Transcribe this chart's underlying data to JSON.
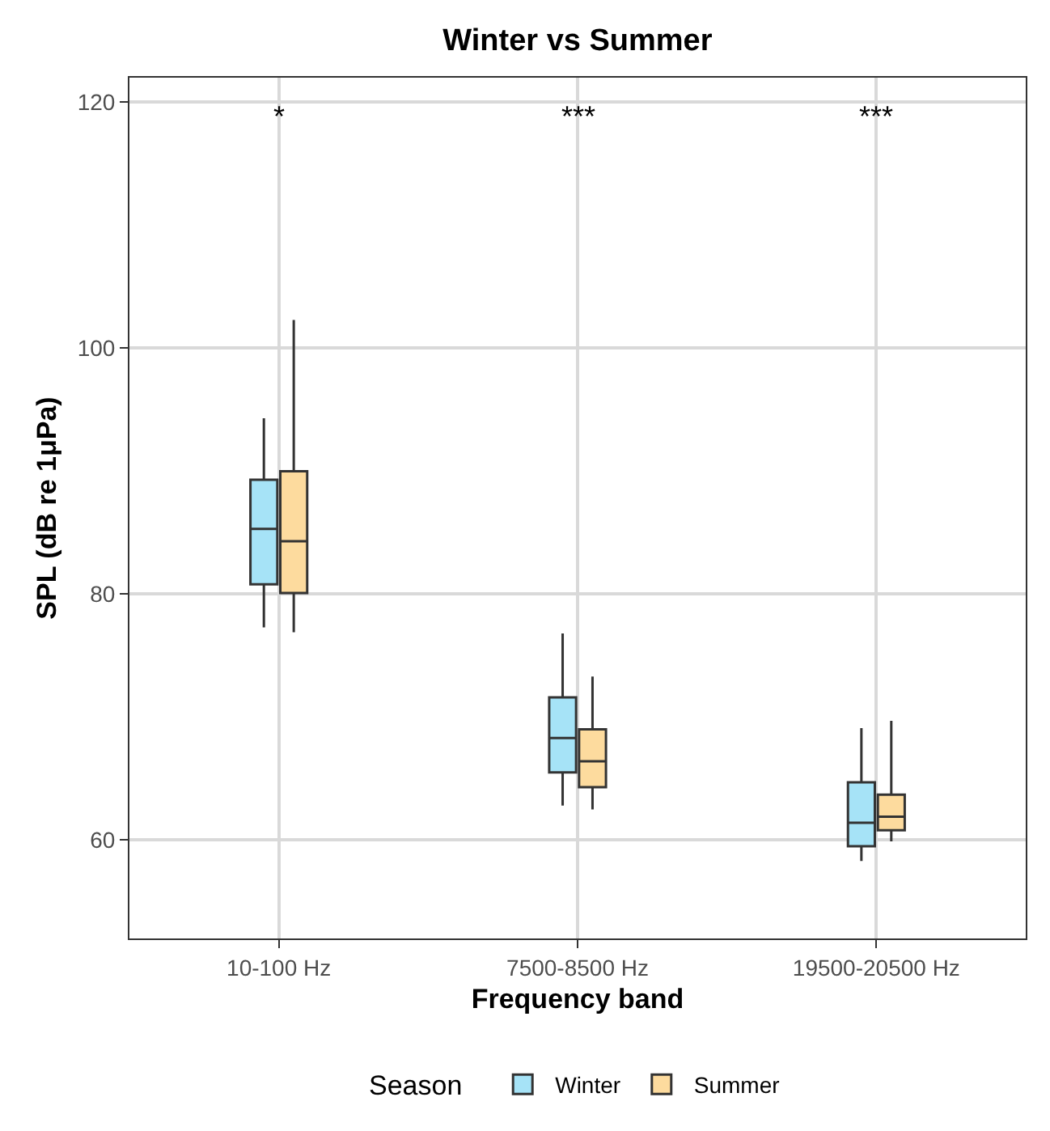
{
  "chart_data": {
    "type": "box",
    "title": "Winter vs Summer",
    "xlabel": "Frequency band",
    "ylabel": "SPL (dB re 1μPa)",
    "legend_title": "Season",
    "categories": [
      "10-100 Hz",
      "7500-8500 Hz",
      "19500-20500 Hz"
    ],
    "series": [
      {
        "name": "Winter",
        "color": "#a6e3f7",
        "boxes": [
          {
            "low": 77.3,
            "q1": 80.8,
            "median": 85.3,
            "q3": 89.3,
            "high": 94.3
          },
          {
            "low": 62.8,
            "q1": 65.5,
            "median": 68.3,
            "q3": 71.6,
            "high": 76.8
          },
          {
            "low": 58.3,
            "q1": 59.5,
            "median": 61.4,
            "q3": 64.7,
            "high": 69.1
          }
        ]
      },
      {
        "name": "Summer",
        "color": "#fddb9e",
        "boxes": [
          {
            "low": 76.9,
            "q1": 80.1,
            "median": 84.3,
            "q3": 90.0,
            "high": 102.3
          },
          {
            "low": 62.5,
            "q1": 64.3,
            "median": 66.4,
            "q3": 69.0,
            "high": 73.3
          },
          {
            "low": 59.9,
            "q1": 60.8,
            "median": 61.9,
            "q3": 63.7,
            "high": 69.7
          }
        ]
      }
    ],
    "annotations": [
      "*",
      "***",
      "***"
    ],
    "ylim": [
      52,
      122
    ],
    "yticks": [
      60,
      80,
      100,
      120
    ],
    "grid": true,
    "legend": "bottom"
  }
}
